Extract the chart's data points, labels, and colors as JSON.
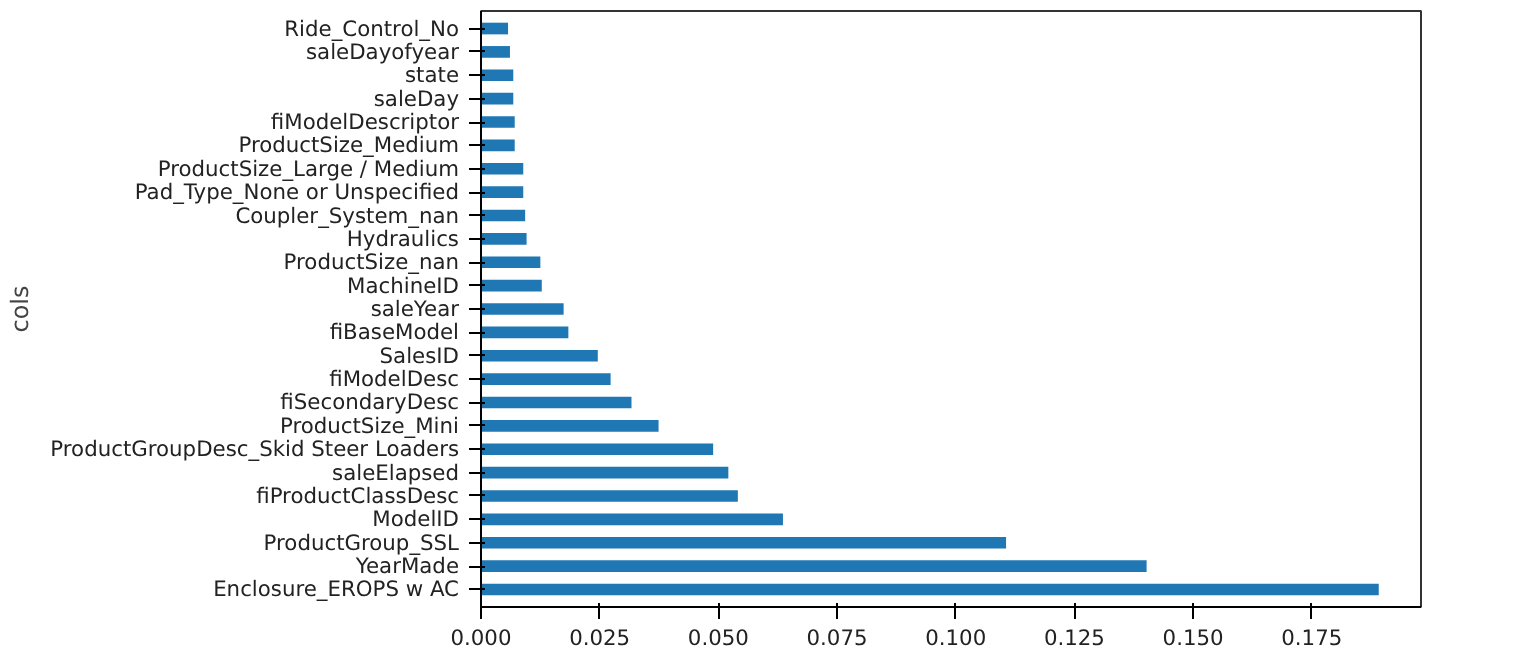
{
  "chart_data": {
    "type": "bar",
    "orientation": "horizontal",
    "ylabel": "cols",
    "categories": [
      "Ride_Control_No",
      "saleDayofyear",
      "state",
      "saleDay",
      "fiModelDescriptor",
      "ProductSize_Medium",
      "ProductSize_Large / Medium",
      "Pad_Type_None or Unspecified",
      "Coupler_System_nan",
      "Hydraulics",
      "ProductSize_nan",
      "MachineID",
      "saleYear",
      "fiBaseModel",
      "SalesID",
      "fiModelDesc",
      "fiSecondaryDesc",
      "ProductSize_Mini",
      "ProductGroupDesc_Skid Steer Loaders",
      "saleElapsed",
      "fiProductClassDesc",
      "ModelID",
      "ProductGroup_SSL",
      "YearMade",
      "Enclosure_EROPS w AC"
    ],
    "values": [
      0.0057,
      0.0061,
      0.0068,
      0.0068,
      0.0071,
      0.0071,
      0.0089,
      0.0089,
      0.0093,
      0.0096,
      0.0125,
      0.0128,
      0.0174,
      0.0184,
      0.0246,
      0.0273,
      0.0317,
      0.0374,
      0.0489,
      0.0521,
      0.0541,
      0.0636,
      0.1106,
      0.1402,
      0.1891
    ],
    "color": "#1f77b4",
    "xlim": [
      0,
      0.198
    ],
    "xticks": [
      {
        "value": 0,
        "label": "0.000"
      },
      {
        "value": 0.025,
        "label": "0.025"
      },
      {
        "value": 0.05,
        "label": "0.050"
      },
      {
        "value": 0.075,
        "label": "0.075"
      },
      {
        "value": 0.1,
        "label": "0.100"
      },
      {
        "value": 0.125,
        "label": "0.125"
      },
      {
        "value": 0.15,
        "label": "0.150"
      },
      {
        "value": 0.175,
        "label": "0.175"
      }
    ],
    "grid": false
  }
}
